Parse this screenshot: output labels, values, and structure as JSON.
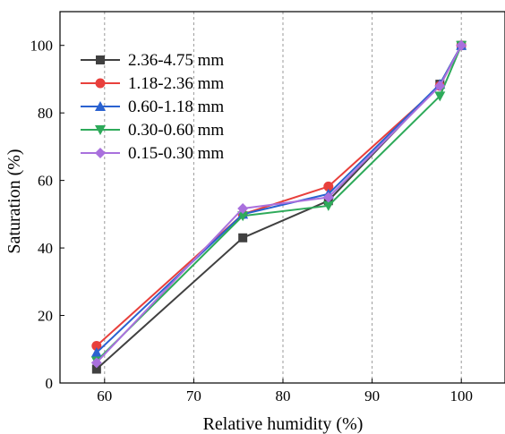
{
  "chart_data": {
    "type": "line",
    "xlabel": "Relative humidity (%)",
    "ylabel": "Saturation (%)",
    "xlim": [
      55,
      105
    ],
    "ylim": [
      0,
      110
    ],
    "xticks": [
      "60",
      "70",
      "80",
      "90",
      "100"
    ],
    "yticks": [
      "0",
      "20",
      "40",
      "60",
      "80",
      "100"
    ],
    "grid": "vertical dashed",
    "legend_position": "top-left",
    "x": [
      59.1,
      75.5,
      85.1,
      97.6,
      100
    ],
    "series": [
      {
        "name": "2.36-4.75 mm",
        "color": "#404040",
        "marker": "square",
        "values": [
          4.1,
          43.0,
          54.0,
          88.5,
          100
        ]
      },
      {
        "name": "1.18-2.36 mm",
        "color": "#e8403c",
        "marker": "circle",
        "values": [
          11.0,
          50.0,
          58.2,
          88.0,
          100
        ]
      },
      {
        "name": "0.60-1.18 mm",
        "color": "#2a62d0",
        "marker": "triangle-up",
        "values": [
          9.0,
          50.0,
          56.0,
          88.5,
          100
        ]
      },
      {
        "name": "0.30-0.60 mm",
        "color": "#2eaa5a",
        "marker": "triangle-down",
        "values": [
          6.5,
          49.5,
          52.5,
          85.0,
          100
        ]
      },
      {
        "name": "0.15-0.30 mm",
        "color": "#a970dd",
        "marker": "diamond",
        "values": [
          6.0,
          51.7,
          55.0,
          88.0,
          100
        ]
      }
    ]
  }
}
